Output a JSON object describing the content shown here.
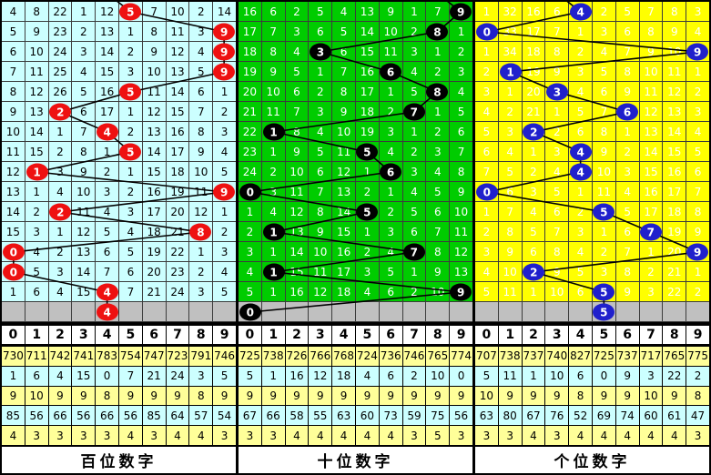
{
  "digit_header": [
    "0",
    "1",
    "2",
    "3",
    "4",
    "5",
    "6",
    "7",
    "8",
    "9"
  ],
  "gray_row_color": "#C0C0C0",
  "grid_line_color": "#3C3C3C",
  "separator_color": "#000000",
  "stat_row_colors": [
    "#FFFF99",
    "#CCFFFF",
    "#FFFF99",
    "#CCFFFF",
    "#FFFF99"
  ],
  "panels": [
    {
      "label": "百位数字",
      "colors": {
        "cell_bg": "#CCFFFF",
        "cell_text": "#000000",
        "circle": "#EE1111"
      },
      "rows": [
        {
          "cells": [
            4,
            8,
            22,
            1,
            12,
            5,
            7,
            10,
            2,
            14
          ],
          "circle": 5
        },
        {
          "cells": [
            5,
            9,
            23,
            2,
            13,
            1,
            8,
            11,
            3,
            9
          ],
          "circle": 9
        },
        {
          "cells": [
            6,
            10,
            24,
            3,
            14,
            2,
            9,
            12,
            4,
            9
          ],
          "circle": 9
        },
        {
          "cells": [
            7,
            11,
            25,
            4,
            15,
            3,
            10,
            13,
            5,
            9
          ],
          "circle": 9
        },
        {
          "cells": [
            8,
            12,
            26,
            5,
            16,
            5,
            11,
            14,
            6,
            1
          ],
          "circle": 5
        },
        {
          "cells": [
            9,
            13,
            2,
            6,
            17,
            1,
            12,
            15,
            7,
            2
          ],
          "circle": 2
        },
        {
          "cells": [
            10,
            14,
            1,
            7,
            4,
            2,
            13,
            16,
            8,
            3
          ],
          "circle": 4
        },
        {
          "cells": [
            11,
            15,
            2,
            8,
            1,
            5,
            14,
            17,
            9,
            4
          ],
          "circle": 5
        },
        {
          "cells": [
            12,
            1,
            3,
            9,
            2,
            1,
            15,
            18,
            10,
            5
          ],
          "circle": 1
        },
        {
          "cells": [
            13,
            1,
            4,
            10,
            3,
            2,
            16,
            19,
            11,
            9
          ],
          "circle": 9
        },
        {
          "cells": [
            14,
            2,
            2,
            11,
            4,
            3,
            17,
            20,
            12,
            1
          ],
          "circle": 2
        },
        {
          "cells": [
            15,
            3,
            1,
            12,
            5,
            4,
            18,
            21,
            8,
            2
          ],
          "circle": 8
        },
        {
          "cells": [
            0,
            4,
            2,
            13,
            6,
            5,
            19,
            22,
            1,
            3
          ],
          "circle": 0
        },
        {
          "cells": [
            0,
            5,
            3,
            14,
            7,
            6,
            20,
            23,
            2,
            4
          ],
          "circle": 0
        },
        {
          "cells": [
            1,
            6,
            4,
            15,
            4,
            7,
            21,
            24,
            3,
            5
          ],
          "circle": 4
        }
      ],
      "gray_circle": 4,
      "stats": [
        [
          730,
          711,
          742,
          741,
          783,
          754,
          747,
          723,
          791,
          746
        ],
        [
          1,
          6,
          4,
          15,
          0,
          7,
          21,
          24,
          3,
          5
        ],
        [
          9,
          10,
          9,
          9,
          8,
          9,
          9,
          9,
          8,
          9
        ],
        [
          85,
          56,
          66,
          56,
          66,
          56,
          85,
          64,
          57,
          54
        ],
        [
          4,
          3,
          3,
          3,
          3,
          4,
          3,
          4,
          4,
          3
        ]
      ]
    },
    {
      "label": "十位数字",
      "colors": {
        "cell_bg": "#00CC00",
        "cell_text": "#FFFFFF",
        "circle": "#000000"
      },
      "rows": [
        {
          "cells": [
            16,
            6,
            2,
            5,
            4,
            13,
            9,
            1,
            7,
            9
          ],
          "circle": 9
        },
        {
          "cells": [
            17,
            7,
            3,
            6,
            5,
            14,
            10,
            2,
            8,
            1
          ],
          "circle": 8
        },
        {
          "cells": [
            18,
            8,
            4,
            3,
            6,
            15,
            11,
            3,
            1,
            2
          ],
          "circle": 3
        },
        {
          "cells": [
            19,
            9,
            5,
            1,
            7,
            16,
            6,
            4,
            2,
            3
          ],
          "circle": 6
        },
        {
          "cells": [
            20,
            10,
            6,
            2,
            8,
            17,
            1,
            5,
            8,
            4
          ],
          "circle": 8
        },
        {
          "cells": [
            21,
            11,
            7,
            3,
            9,
            18,
            2,
            7,
            1,
            5
          ],
          "circle": 7
        },
        {
          "cells": [
            22,
            1,
            8,
            4,
            10,
            19,
            3,
            1,
            2,
            6
          ],
          "circle": 1
        },
        {
          "cells": [
            23,
            1,
            9,
            5,
            11,
            5,
            4,
            2,
            3,
            7
          ],
          "circle": 5
        },
        {
          "cells": [
            24,
            2,
            10,
            6,
            12,
            1,
            6,
            3,
            4,
            8
          ],
          "circle": 6
        },
        {
          "cells": [
            0,
            3,
            11,
            7,
            13,
            2,
            1,
            4,
            5,
            9
          ],
          "circle": 0
        },
        {
          "cells": [
            1,
            4,
            12,
            8,
            14,
            5,
            2,
            5,
            6,
            10
          ],
          "circle": 5
        },
        {
          "cells": [
            2,
            1,
            13,
            9,
            15,
            1,
            3,
            6,
            7,
            11
          ],
          "circle": 1
        },
        {
          "cells": [
            3,
            1,
            14,
            10,
            16,
            2,
            4,
            7,
            8,
            12
          ],
          "circle": 7
        },
        {
          "cells": [
            4,
            1,
            15,
            11,
            17,
            3,
            5,
            1,
            9,
            13
          ],
          "circle": 1
        },
        {
          "cells": [
            5,
            1,
            16,
            12,
            18,
            4,
            6,
            2,
            10,
            9
          ],
          "circle": 9
        }
      ],
      "gray_circle": 0,
      "stats": [
        [
          725,
          738,
          726,
          766,
          768,
          724,
          736,
          746,
          765,
          774
        ],
        [
          5,
          1,
          16,
          12,
          18,
          4,
          6,
          2,
          10,
          0
        ],
        [
          9,
          9,
          9,
          9,
          9,
          9,
          9,
          9,
          9,
          9
        ],
        [
          67,
          66,
          58,
          55,
          63,
          60,
          73,
          59,
          75,
          56
        ],
        [
          3,
          3,
          4,
          4,
          4,
          4,
          4,
          3,
          5,
          3
        ]
      ]
    },
    {
      "label": "个位数字",
      "colors": {
        "cell_bg": "#FFFF00",
        "cell_text": "#FFFFFF",
        "circle": "#2020CC"
      },
      "rows": [
        {
          "cells": [
            1,
            32,
            16,
            6,
            4,
            2,
            5,
            7,
            8,
            3
          ],
          "circle": 4
        },
        {
          "cells": [
            0,
            33,
            17,
            7,
            1,
            3,
            6,
            8,
            9,
            4
          ],
          "circle": 0
        },
        {
          "cells": [
            1,
            34,
            18,
            8,
            2,
            4,
            7,
            9,
            10,
            9
          ],
          "circle": 9
        },
        {
          "cells": [
            2,
            1,
            19,
            9,
            3,
            5,
            8,
            10,
            11,
            1
          ],
          "circle": 1
        },
        {
          "cells": [
            3,
            1,
            20,
            3,
            4,
            6,
            9,
            11,
            12,
            2
          ],
          "circle": 3
        },
        {
          "cells": [
            4,
            2,
            21,
            1,
            5,
            7,
            6,
            12,
            13,
            3
          ],
          "circle": 6
        },
        {
          "cells": [
            5,
            3,
            2,
            2,
            6,
            8,
            1,
            13,
            14,
            4
          ],
          "circle": 2
        },
        {
          "cells": [
            6,
            4,
            1,
            3,
            4,
            9,
            2,
            14,
            15,
            5
          ],
          "circle": 4
        },
        {
          "cells": [
            7,
            5,
            2,
            4,
            4,
            10,
            3,
            15,
            16,
            6
          ],
          "circle": 4
        },
        {
          "cells": [
            0,
            6,
            3,
            5,
            1,
            11,
            4,
            16,
            17,
            7
          ],
          "circle": 0
        },
        {
          "cells": [
            1,
            7,
            4,
            6,
            2,
            5,
            5,
            17,
            18,
            8
          ],
          "circle": 5
        },
        {
          "cells": [
            2,
            8,
            5,
            7,
            3,
            1,
            6,
            7,
            19,
            9
          ],
          "circle": 7
        },
        {
          "cells": [
            3,
            9,
            6,
            8,
            4,
            2,
            7,
            1,
            20,
            9
          ],
          "circle": 9
        },
        {
          "cells": [
            4,
            10,
            2,
            9,
            5,
            3,
            8,
            2,
            21,
            1
          ],
          "circle": 2
        },
        {
          "cells": [
            5,
            11,
            1,
            10,
            6,
            5,
            9,
            3,
            22,
            2
          ],
          "circle": 5
        }
      ],
      "gray_circle": 5,
      "stats": [
        [
          707,
          738,
          737,
          740,
          827,
          725,
          737,
          717,
          765,
          775
        ],
        [
          5,
          11,
          1,
          10,
          6,
          0,
          9,
          3,
          22,
          2
        ],
        [
          10,
          9,
          9,
          9,
          8,
          9,
          9,
          10,
          9,
          8
        ],
        [
          63,
          80,
          67,
          76,
          52,
          69,
          74,
          60,
          61,
          47
        ],
        [
          3,
          3,
          4,
          3,
          4,
          4,
          4,
          4,
          4,
          3
        ]
      ]
    }
  ],
  "chart_data": [
    {
      "type": "line",
      "name": "百位数字",
      "x": [
        1,
        2,
        3,
        4,
        5,
        6,
        7,
        8,
        9,
        10,
        11,
        12,
        13,
        14,
        15
      ],
      "values": [
        5,
        9,
        9,
        9,
        5,
        2,
        4,
        5,
        1,
        9,
        2,
        8,
        0,
        0,
        4
      ],
      "gray_row_value": 4,
      "ylim": [
        0,
        9
      ]
    },
    {
      "type": "line",
      "name": "十位数字",
      "x": [
        1,
        2,
        3,
        4,
        5,
        6,
        7,
        8,
        9,
        10,
        11,
        12,
        13,
        14,
        15
      ],
      "values": [
        9,
        8,
        3,
        6,
        8,
        7,
        1,
        5,
        6,
        0,
        5,
        1,
        7,
        1,
        9
      ],
      "gray_row_value": 0,
      "ylim": [
        0,
        9
      ]
    },
    {
      "type": "line",
      "name": "个位数字",
      "x": [
        1,
        2,
        3,
        4,
        5,
        6,
        7,
        8,
        9,
        10,
        11,
        12,
        13,
        14,
        15
      ],
      "values": [
        4,
        0,
        9,
        1,
        3,
        6,
        2,
        4,
        4,
        0,
        5,
        7,
        9,
        2,
        5
      ],
      "gray_row_value": 5,
      "ylim": [
        0,
        9
      ]
    }
  ]
}
